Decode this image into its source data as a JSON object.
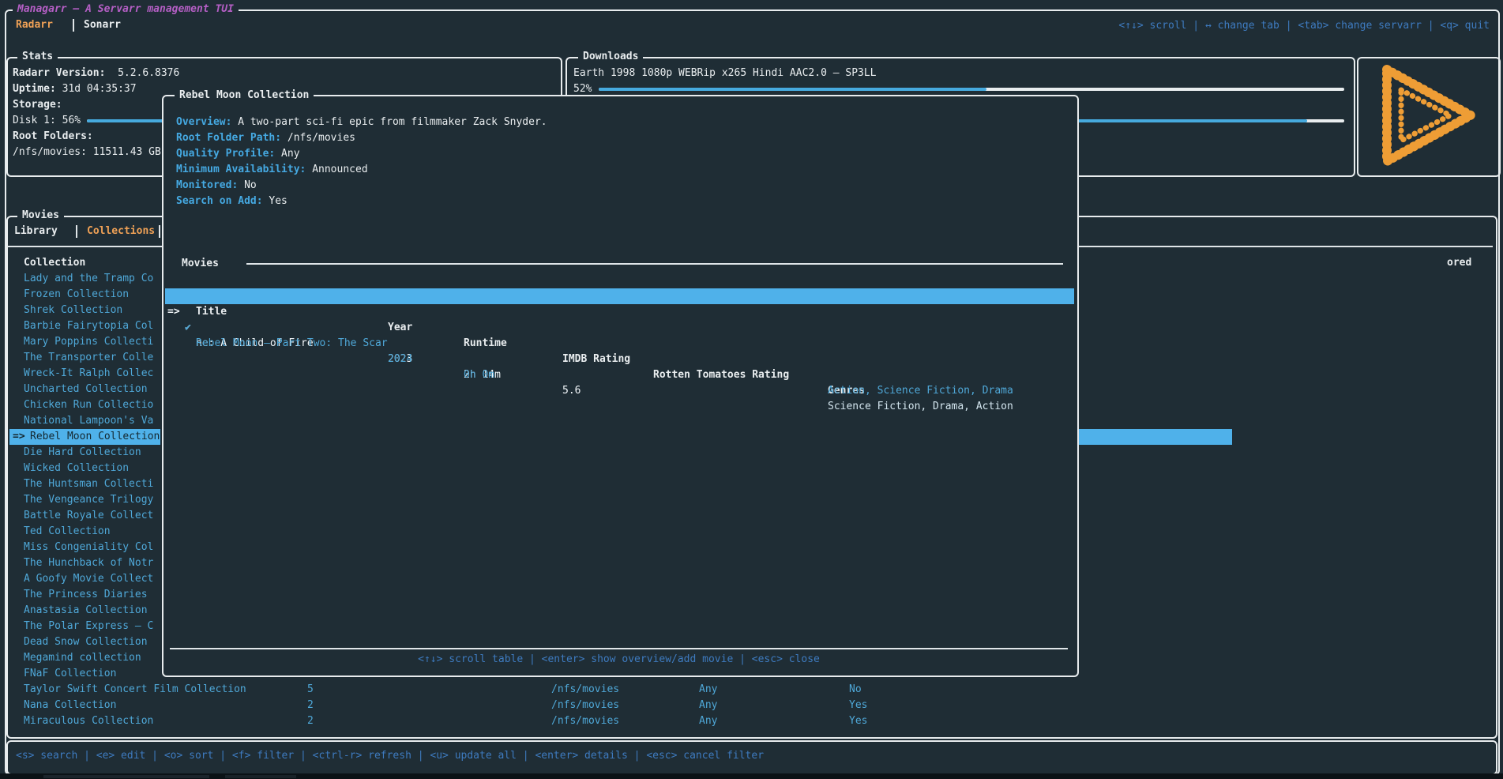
{
  "app": {
    "title": "Managarr – A Servarr management TUI",
    "tabs": {
      "radarr": "Radarr",
      "sonarr": "Sonarr"
    },
    "top_hints": "<↑↓> scroll | ↔ change tab | <tab> change servarr | <q> quit"
  },
  "stats": {
    "title": "Stats",
    "version_label": "Radarr Version:",
    "version": "5.2.6.8376",
    "uptime_label": "Uptime:",
    "uptime": "31d 04:35:37",
    "storage_label": "Storage:",
    "disk_label": "Disk 1:",
    "disk_percent": "56%",
    "disk_fill": 56,
    "root_folders_label": "Root Folders:",
    "root_folder": "/nfs/movies: 11511.43 GB"
  },
  "downloads": {
    "title": "Downloads",
    "items": [
      {
        "name": "Earth 1998 1080p WEBRip x265 Hindi AAC2.0 – SP3LL",
        "percent_label": "52%",
        "percent": 52
      },
      {
        "name": "",
        "percent": 95
      }
    ]
  },
  "logo": {
    "name": "radarr-logo",
    "color": "#ee9d35"
  },
  "movies_panel": {
    "title": "Movies",
    "tabs": {
      "library": "Library",
      "collections": "Collections"
    },
    "column_header": "Collection",
    "monitored_header_fragment": "ored",
    "collections": [
      {
        "name": "Lady and the Tramp Co"
      },
      {
        "name": "Frozen Collection"
      },
      {
        "name": "Shrek Collection"
      },
      {
        "name": "Barbie Fairytopia Col"
      },
      {
        "name": "Mary Poppins Collecti"
      },
      {
        "name": "The Transporter Colle"
      },
      {
        "name": "Wreck-It Ralph Collec"
      },
      {
        "name": "Uncharted Collection"
      },
      {
        "name": "Chicken Run Collectio"
      },
      {
        "name": "National Lampoon's Va"
      },
      {
        "name": "Rebel Moon Collection",
        "selected": true,
        "arrow": "=>"
      },
      {
        "name": "Die Hard Collection"
      },
      {
        "name": "Wicked Collection"
      },
      {
        "name": "The Huntsman Collecti"
      },
      {
        "name": "The Vengeance Trilogy"
      },
      {
        "name": "Battle Royale Collect"
      },
      {
        "name": "Ted Collection"
      },
      {
        "name": "Miss Congeniality Col"
      },
      {
        "name": "The Hunchback of Notr"
      },
      {
        "name": "A Goofy Movie Collect"
      },
      {
        "name": "The Princess Diaries"
      },
      {
        "name": "Anastasia Collection"
      },
      {
        "name": "The Polar Express – C"
      },
      {
        "name": "Dead Snow Collection"
      },
      {
        "name": "Megamind collection"
      },
      {
        "name": "FNaF Collection"
      },
      {
        "name": "Taylor Swift Concert Film Collection",
        "count": "5",
        "root_folder": "/nfs/movies",
        "quality": "Any",
        "monitored": "No"
      },
      {
        "name": "Nana Collection",
        "count": "2",
        "root_folder": "/nfs/movies",
        "quality": "Any",
        "monitored": "Yes"
      },
      {
        "name": "Miraculous Collection",
        "count": "2",
        "root_folder": "/nfs/movies",
        "quality": "Any",
        "monitored": "Yes"
      }
    ]
  },
  "modal": {
    "title": "Rebel Moon Collection",
    "fields": [
      {
        "label": "Overview:",
        "value": "A two-part sci-fi epic from filmmaker Zack Snyder."
      },
      {
        "label": "Root Folder Path:",
        "value": "/nfs/movies"
      },
      {
        "label": "Quality Profile:",
        "value": "Any"
      },
      {
        "label": "Minimum Availability:",
        "value": "Announced"
      },
      {
        "label": "Monitored:",
        "value": "No"
      },
      {
        "label": "Search on Add:",
        "value": "Yes"
      }
    ],
    "movies": {
      "section_title": "Movies",
      "headers": {
        "check": "✔",
        "title": "Title",
        "year": "Year",
        "runtime": "Runtime",
        "imdb": "IMDB Rating",
        "rotten": "Rotten Tomatoes Rating",
        "genres": "Genres"
      },
      "rows": [
        {
          "arrow": "=>",
          "check": "✔",
          "title": "ne: A Child of Fire",
          "year": "2023",
          "runtime": "2h 14m",
          "imdb": "5.6",
          "genres": "Science Fiction, Drama, Action",
          "selected": true
        },
        {
          "check": "✔",
          "title": "Rebel Moon – Part Two: The Scar",
          "year": "2024",
          "runtime": "0h 0m",
          "imdb": "",
          "genres": "Action, Science Fiction, Drama",
          "selected": false
        }
      ]
    },
    "footer": "<↑↓> scroll table | <enter> show overview/add movie | <esc> close"
  },
  "bottom_bar": {
    "hints": "<s> search | <e> edit | <o> sort | <f> filter | <ctrl-r> refresh | <u> update all | <enter> details | <esc> cancel filter"
  },
  "colors": {
    "background": "#1f2d35",
    "border": "#e8ecee",
    "text_blue": "#4fa8d8",
    "keybind_blue": "#3e7bc0",
    "accent_orange": "#efa156",
    "title_purple": "#b55fc5",
    "selection_blue": "#4fb1ea",
    "selected_text_dark": "#14272f",
    "gauge_blue": "#46aade"
  }
}
